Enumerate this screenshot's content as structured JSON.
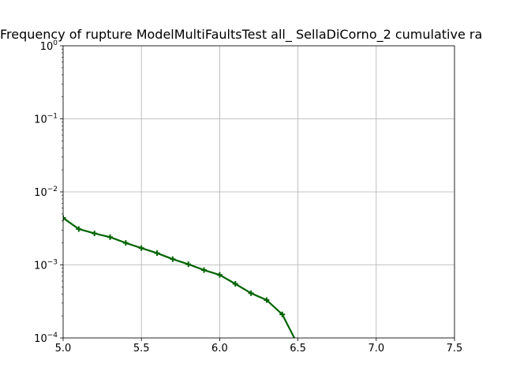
{
  "chart_data": {
    "type": "line",
    "title": "Frequency of rupture ModelMultiFaultsTest all_ SellaDiCorno_2 cumulative ra",
    "xlabel": "",
    "ylabel": "",
    "xlim": [
      5.0,
      7.5
    ],
    "ylim": [
      0.0001,
      1
    ],
    "yscale": "log",
    "grid": true,
    "x_ticks": [
      "5.0",
      "5.5",
      "6.0",
      "6.5",
      "7.0",
      "7.5"
    ],
    "y_ticks": [
      {
        "base": "10",
        "exp": "0"
      },
      {
        "base": "10",
        "exp": "−1"
      },
      {
        "base": "10",
        "exp": "−2"
      },
      {
        "base": "10",
        "exp": "−3"
      },
      {
        "base": "10",
        "exp": "−4"
      }
    ],
    "series": [
      {
        "color": "#006400",
        "x": [
          5.0,
          5.1,
          5.2,
          5.3,
          5.4,
          5.5,
          5.6,
          5.7,
          5.8,
          5.9,
          6.0,
          6.1,
          6.2,
          6.3,
          6.4,
          6.5
        ],
        "y": [
          0.0044,
          0.0031,
          0.0027,
          0.0024,
          0.002,
          0.0017,
          0.00145,
          0.0012,
          0.00102,
          0.00085,
          0.00073,
          0.00055,
          0.00041,
          0.00033,
          0.00021,
          8e-05
        ]
      }
    ]
  }
}
